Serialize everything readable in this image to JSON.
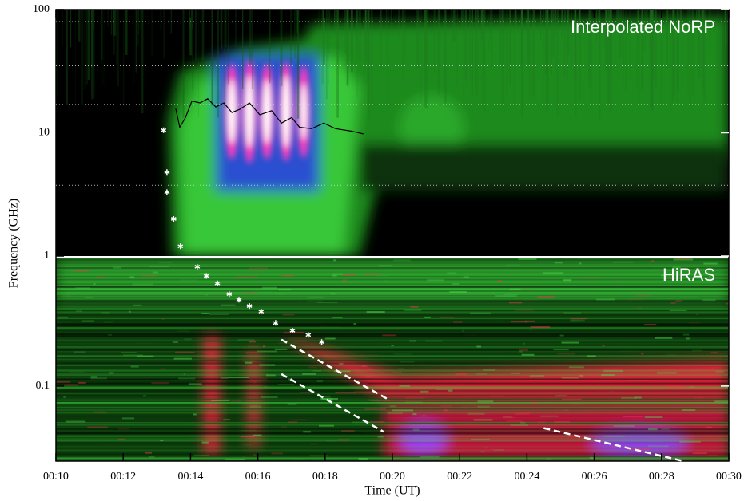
{
  "chart_data": [
    {
      "type": "spectrogram",
      "label": "Interpolated NoRP",
      "ylabel": "Frequency (GHz)",
      "log": true,
      "ylim": [
        1,
        100
      ],
      "yticks": [
        1,
        10,
        100
      ],
      "xlim": [
        10,
        30
      ],
      "grid_frequencies": [
        80,
        35,
        17,
        3.75,
        2
      ],
      "markers": {
        "x": [
          13.2,
          13.3,
          13.3,
          13.5,
          13.7
        ],
        "values": [
          10.5,
          4.8,
          3.3,
          2.0,
          1.2
        ]
      },
      "profile": {
        "x": [
          13.56,
          13.68,
          13.85,
          14.04,
          14.28,
          14.51,
          14.75,
          14.99,
          15.23,
          15.46,
          15.75,
          16.06,
          16.41,
          16.7,
          17.01,
          17.24,
          17.6,
          17.96,
          18.31,
          18.79,
          19.14
        ],
        "values": [
          15.7,
          11.1,
          13.3,
          18.1,
          17.5,
          18.9,
          16.2,
          17.5,
          14.6,
          15.5,
          17.5,
          14.0,
          15.1,
          12.0,
          13.3,
          11.1,
          10.8,
          12.0,
          10.8,
          10.3,
          9.8
        ]
      }
    },
    {
      "type": "spectrogram",
      "label": "HiRAS",
      "xlabel": "Time (UT)",
      "log": true,
      "ylim": [
        0.026,
        1
      ],
      "yticks": [
        0.1
      ],
      "xlim": [
        10,
        30
      ],
      "xticks": [
        {
          "value": 10,
          "label": "00:10"
        },
        {
          "value": 12,
          "label": "00:12"
        },
        {
          "value": 14,
          "label": "00:14"
        },
        {
          "value": 16,
          "label": "00:16"
        },
        {
          "value": 18,
          "label": "00:18"
        },
        {
          "value": 20,
          "label": "00:20"
        },
        {
          "value": 22,
          "label": "00:22"
        },
        {
          "value": 24,
          "label": "00:24"
        },
        {
          "value": 26,
          "label": "00:26"
        },
        {
          "value": 28,
          "label": "00:28"
        },
        {
          "value": 30,
          "label": "00:30"
        }
      ],
      "markers": {
        "x": [
          14.2,
          14.47,
          14.8,
          15.15,
          15.44,
          15.75,
          16.1,
          16.53,
          17.03,
          17.5,
          17.9
        ],
        "values": [
          0.85,
          0.72,
          0.63,
          0.52,
          0.47,
          0.42,
          0.38,
          0.31,
          0.27,
          0.25,
          0.22
        ]
      },
      "drifts": [
        {
          "x": [
            16.7,
            19.9
          ],
          "values": [
            0.23,
            0.078
          ]
        },
        {
          "x": [
            16.7,
            19.74
          ],
          "values": [
            0.124,
            0.044
          ]
        },
        {
          "x": [
            24.5,
            28.65
          ],
          "values": [
            0.047,
            0.026
          ]
        }
      ]
    }
  ]
}
